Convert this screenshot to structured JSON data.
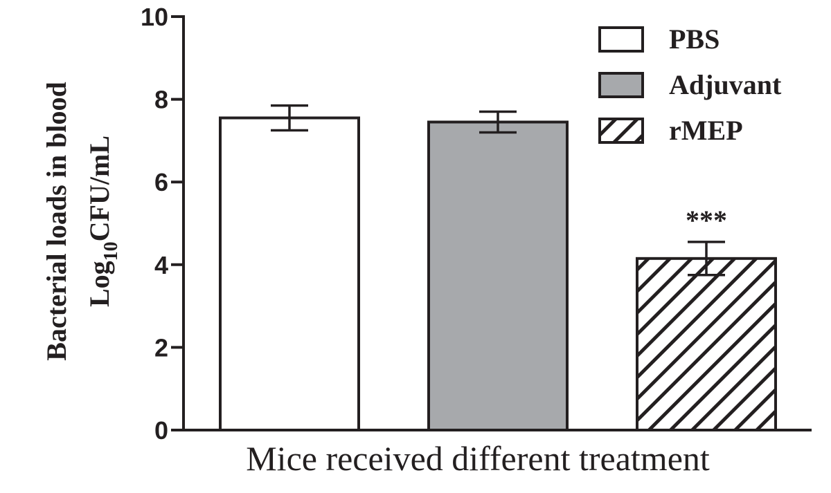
{
  "chart_data": {
    "type": "bar",
    "title": "",
    "xlabel": "Mice received different treatment",
    "ylabel_line1": "Bacterial loads in blood",
    "ylabel_line2_main": "Log",
    "ylabel_line2_sub": "10",
    "ylabel_line2_rest": "CFU/mL",
    "ylim": [
      0,
      10
    ],
    "yticks": [
      0,
      2,
      4,
      6,
      8,
      10
    ],
    "ytick_labels": [
      "0",
      "2",
      "4",
      "6",
      "8",
      "10"
    ],
    "categories": [
      "PBS",
      "Adjuvant",
      "rMEP"
    ],
    "values": [
      7.55,
      7.45,
      4.15
    ],
    "errors": [
      0.3,
      0.25,
      0.4
    ],
    "annotations": [
      "",
      "",
      "***"
    ],
    "legend": {
      "position": "top-right",
      "entries": [
        {
          "label": "PBS",
          "fill": "white"
        },
        {
          "label": "Adjuvant",
          "fill": "gray"
        },
        {
          "label": "rMEP",
          "fill": "hatch"
        }
      ]
    },
    "colors": {
      "ink": "#231f20",
      "white_fill": "#ffffff",
      "gray_fill": "#a7a9ac"
    }
  }
}
